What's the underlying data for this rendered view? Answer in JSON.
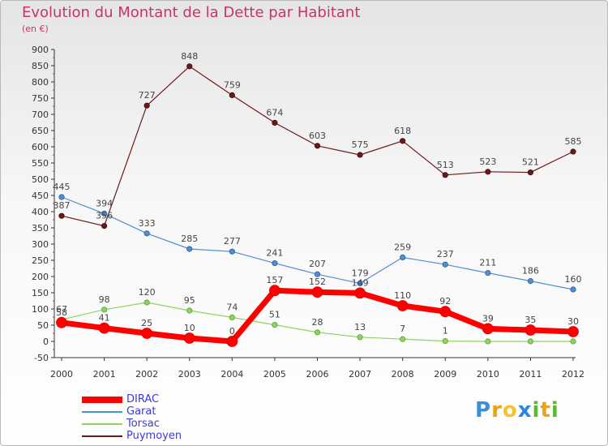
{
  "title": "Evolution du Montant de la Dette par Habitant",
  "subtitle": "(en €)",
  "brand": "Proxiti",
  "chart_data": {
    "type": "line",
    "x": [
      "2000",
      "2001",
      "2002",
      "2003",
      "2004",
      "2005",
      "2006",
      "2007",
      "2008",
      "2009",
      "2010",
      "2011",
      "2012"
    ],
    "ylim": [
      -50,
      900
    ],
    "yticks": [
      -50,
      0,
      50,
      100,
      150,
      200,
      250,
      300,
      350,
      400,
      450,
      500,
      550,
      600,
      650,
      700,
      750,
      800,
      850,
      900
    ],
    "grid": false,
    "legend_position": "bottom-left",
    "series": [
      {
        "name": "DIRAC",
        "color": "#ff0000",
        "values": [
          58,
          41,
          25,
          10,
          0,
          157,
          152,
          149,
          110,
          92,
          39,
          35,
          30
        ]
      },
      {
        "name": "Garat",
        "color": "#4f8fcf",
        "values": [
          445,
          394,
          333,
          285,
          277,
          241,
          207,
          179,
          259,
          237,
          211,
          186,
          160
        ]
      },
      {
        "name": "Torsac",
        "color": "#8fd35f",
        "values": [
          67,
          98,
          120,
          95,
          74,
          51,
          28,
          13,
          7,
          1,
          0,
          0,
          0
        ]
      },
      {
        "name": "Puymoyen",
        "color": "#6b1a1a",
        "values": [
          387,
          356,
          727,
          848,
          759,
          674,
          603,
          575,
          618,
          513,
          523,
          521,
          585
        ]
      }
    ],
    "shown_labels": {
      "DIRAC": [
        "58",
        "41",
        "25",
        "10",
        "0",
        "157",
        "152",
        "149",
        "110",
        "92",
        "39",
        "35",
        "30"
      ],
      "Garat": [
        "445",
        "394",
        "333",
        "285",
        "277",
        "241",
        "207",
        "179",
        "259",
        "237",
        "211",
        "186",
        "160"
      ],
      "Torsac": [
        "67",
        "98",
        "120",
        "95",
        "74",
        "51",
        "28",
        "13",
        "7",
        "1",
        "",
        "",
        ""
      ],
      "Puymoyen": [
        "387",
        "356",
        "727",
        "848",
        "759",
        "674",
        "603",
        "575",
        "618",
        "513",
        "523",
        "521",
        "585"
      ]
    }
  }
}
